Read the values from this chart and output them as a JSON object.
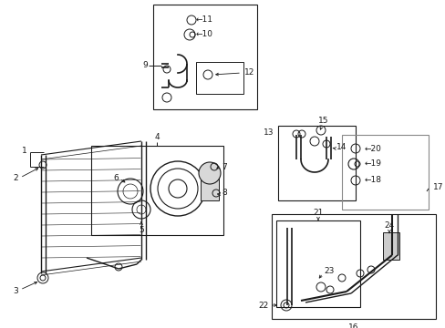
{
  "bg_color": "#ffffff",
  "line_color": "#1a1a1a",
  "fig_width": 4.89,
  "fig_height": 3.6,
  "dpi": 100,
  "fs": 6.5,
  "lw": 0.7
}
